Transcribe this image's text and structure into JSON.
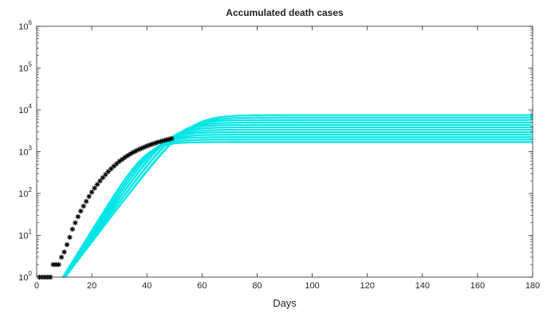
{
  "chart_data": {
    "type": "line",
    "title": "Accumulated death cases",
    "xlabel": "Days",
    "ylabel": "",
    "xlim": [
      0,
      180
    ],
    "ylim": [
      1,
      1000000
    ],
    "yscale": "log",
    "grid": false,
    "x_ticks": [
      "0",
      "20",
      "40",
      "60",
      "80",
      "100",
      "120",
      "140",
      "160",
      "180"
    ],
    "y_ticks": [
      {
        "base": "10",
        "exp": "0"
      },
      {
        "base": "10",
        "exp": "1"
      },
      {
        "base": "10",
        "exp": "2"
      },
      {
        "base": "10",
        "exp": "3"
      },
      {
        "base": "10",
        "exp": "4"
      },
      {
        "base": "10",
        "exp": "5"
      },
      {
        "base": "10",
        "exp": "6"
      }
    ],
    "simulation_color": "#00e5e5",
    "observed_color": "#000000",
    "simulations": {
      "count": 12,
      "plateau_min": 1700,
      "plateau_max": 7500,
      "onset_day_min": 9.5,
      "onset_day_max": 10.5,
      "growth_rate_min": 0.195,
      "growth_rate_max": 0.245,
      "x_max": 180
    },
    "observed": {
      "marker": "asterisk",
      "x": [
        1,
        2,
        3,
        4,
        5,
        6,
        7,
        8,
        9,
        10,
        11,
        12,
        13,
        14,
        15,
        16,
        17,
        18,
        19,
        20,
        21,
        22,
        23,
        24,
        25,
        26,
        27,
        28,
        29,
        30,
        31,
        32,
        33,
        34,
        35,
        36,
        37,
        38,
        39,
        40,
        41,
        42,
        43,
        44,
        45,
        46,
        47,
        48,
        49
      ],
      "y": [
        1,
        1,
        1,
        1,
        1,
        2,
        2,
        2,
        3,
        4,
        6,
        9,
        14,
        20,
        28,
        38,
        50,
        65,
        85,
        108,
        135,
        165,
        200,
        240,
        285,
        335,
        390,
        450,
        515,
        585,
        655,
        730,
        805,
        885,
        965,
        1045,
        1125,
        1205,
        1285,
        1365,
        1445,
        1525,
        1605,
        1685,
        1765,
        1845,
        1920,
        1995,
        2070
      ]
    }
  }
}
